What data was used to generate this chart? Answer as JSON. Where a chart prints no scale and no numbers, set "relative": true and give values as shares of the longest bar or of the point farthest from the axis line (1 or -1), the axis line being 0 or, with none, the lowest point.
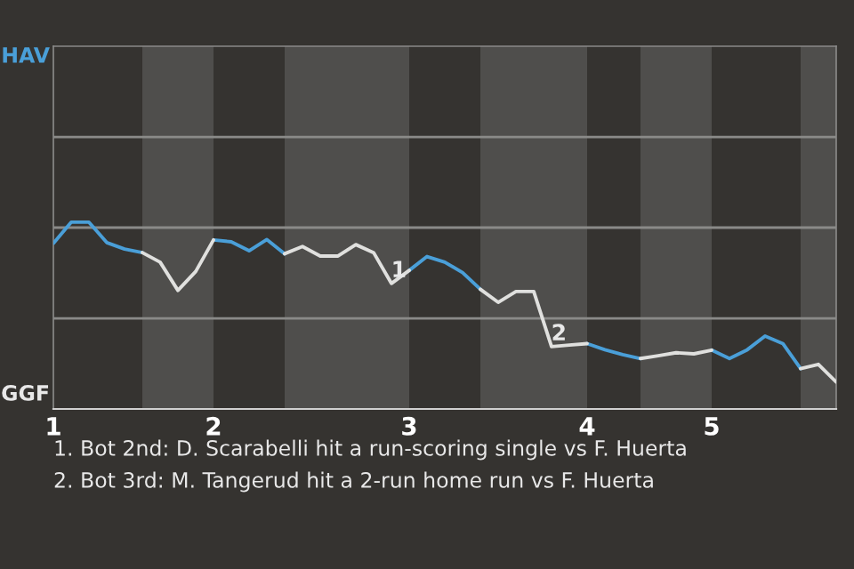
{
  "chart_data": {
    "type": "line",
    "relative": true,
    "categories": [
      "1",
      null,
      null,
      null,
      null,
      null,
      null,
      null,
      null,
      "2",
      null,
      null,
      null,
      null,
      null,
      null,
      null,
      null,
      null,
      null,
      "3",
      null,
      null,
      null,
      null,
      null,
      null,
      null,
      null,
      null,
      "4",
      null,
      null,
      null,
      null,
      null,
      null,
      "5",
      null,
      null,
      null,
      null,
      null,
      null,
      null
    ],
    "series": [
      {
        "color": "#4a9fd8",
        "values": [
          0.887,
          1,
          1,
          0.891,
          0.856,
          0.837,
          null,
          null,
          null,
          0.905,
          0.895,
          0.847,
          0.907,
          0.831,
          null,
          null,
          null,
          null,
          null,
          null,
          0.742,
          0.816,
          0.786,
          0.73,
          0.641,
          null,
          null,
          null,
          null,
          null,
          0.35,
          0.317,
          0.291,
          0.27,
          null,
          null,
          null,
          0.315,
          0.27,
          0.317,
          0.39,
          0.35,
          0.216,
          null,
          null
        ]
      },
      {
        "color": "#e0e0de",
        "values": [
          null,
          null,
          null,
          null,
          null,
          0.837,
          0.786,
          0.635,
          0.736,
          0.905,
          null,
          null,
          null,
          0.831,
          0.87,
          0.819,
          0.819,
          0.88,
          0.837,
          0.672,
          0.742,
          null,
          null,
          null,
          0.641,
          0.571,
          0.629,
          0.629,
          0.334,
          0.342,
          0.35,
          null,
          null,
          0.27,
          0.285,
          0.301,
          0.295,
          0.315,
          null,
          null,
          null,
          null,
          0.216,
          0.239,
          0.144
        ]
      }
    ],
    "ref_lines": [
      {
        "axis": "y",
        "value": 0.485,
        "color": "#8a8a88"
      },
      {
        "axis": "y",
        "value": 0.971,
        "color": "#8a8a88"
      },
      {
        "axis": "y",
        "value": 1.456,
        "color": "#8a8a88"
      }
    ],
    "annotations": [
      {
        "text": "1",
        "y": 0.672
      },
      {
        "text": "2",
        "y": 0.334
      },
      "HAV",
      "GGF",
      "1. Bot 2nd: D. Scarabelli hit a run-scoring single vs F. Huerta",
      "2. Bot 3rd: M. Tangerud hit a 2-run home run vs F. Huerta"
    ]
  }
}
